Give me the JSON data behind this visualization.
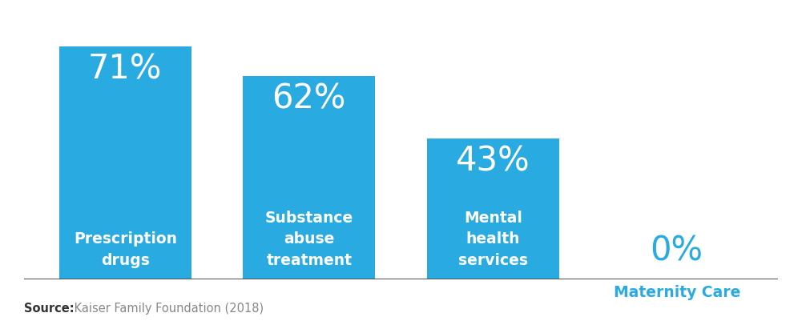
{
  "categories": [
    "Prescription\ndrugs",
    "Substance\nabuse\ntreatment",
    "Mental\nhealth\nservices",
    "Maternity Care"
  ],
  "values": [
    71,
    62,
    43,
    0
  ],
  "bar_color": "#29ABE2",
  "text_color_white": "#FFFFFF",
  "text_color_blue": "#29ABE2",
  "background_color": "#FFFFFF",
  "percent_labels": [
    "71%",
    "62%",
    "43%",
    "0%"
  ],
  "source_bold": "Source:",
  "source_text": " Kaiser Family Foundation (2018)",
  "source_fontsize": 10.5,
  "pct_fontsize": 30,
  "label_fontsize": 13.5,
  "ylim": [
    0,
    82
  ],
  "figsize": [
    10.01,
    4.11
  ],
  "dpi": 100
}
